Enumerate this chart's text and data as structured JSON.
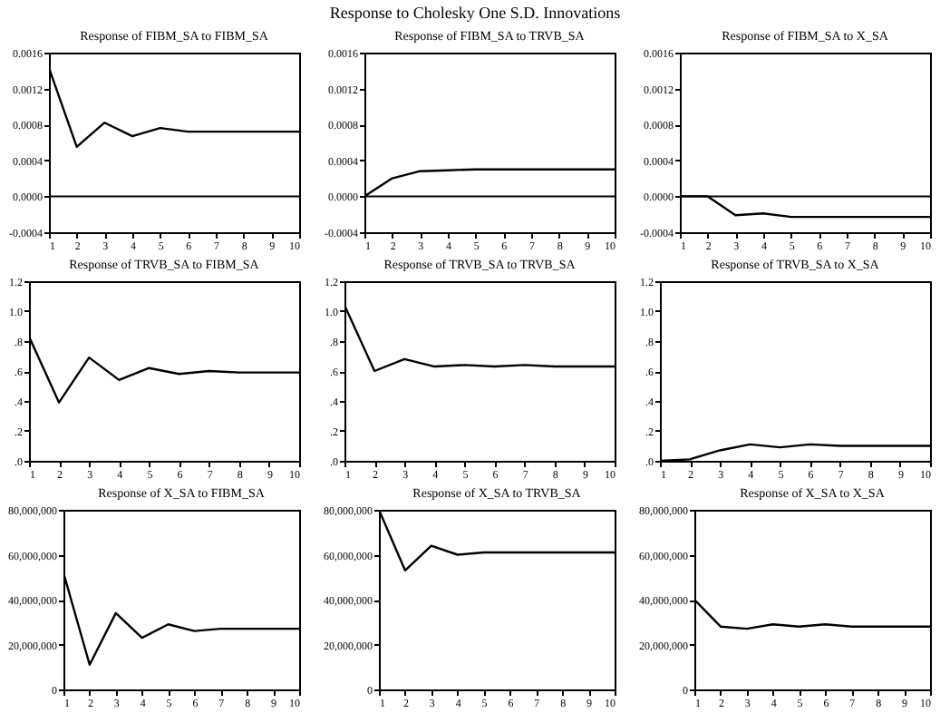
{
  "chart_data": [
    {
      "type": "line",
      "title": "Response of FIBM_SA to FIBM_SA",
      "annotations": [
        "Response to Cholesky One S.D. Innovations"
      ],
      "x": [
        1,
        2,
        3,
        4,
        5,
        6,
        7,
        8,
        9,
        10
      ],
      "xlim": [
        1,
        10
      ],
      "xticks": [
        1,
        2,
        3,
        4,
        5,
        6,
        7,
        8,
        9,
        10
      ],
      "ylim": [
        -0.0004,
        0.0016
      ],
      "yticks": [
        -0.0004,
        {
          "value": 0,
          "label": "0.0000"
        },
        0.0004,
        0.0008,
        0.0012,
        0.0016
      ],
      "ref_lines": [
        {
          "axis": "y",
          "value": 0
        }
      ],
      "series": [
        {
          "color": "#000000",
          "values": [
            0.00143,
            0.00055,
            0.00082,
            0.00067,
            0.00076,
            0.00072,
            0.00072,
            0.00072,
            0.00072,
            0.00072
          ]
        }
      ]
    },
    {
      "type": "line",
      "title": "Response of FIBM_SA to TRVB_SA",
      "x": [
        1,
        2,
        3,
        4,
        5,
        6,
        7,
        8,
        9,
        10
      ],
      "xlim": [
        1,
        10
      ],
      "xticks": [
        1,
        2,
        3,
        4,
        5,
        6,
        7,
        8,
        9,
        10
      ],
      "ylim": [
        -0.0004,
        0.0016
      ],
      "yticks": [
        -0.0004,
        {
          "value": 0,
          "label": "0.0000"
        },
        0.0004,
        0.0008,
        0.0012,
        0.0016
      ],
      "ref_lines": [
        {
          "axis": "y",
          "value": 0
        }
      ],
      "series": [
        {
          "color": "#000000",
          "values": [
            0,
            0.0002,
            0.00028,
            0.00029,
            0.0003,
            0.0003,
            0.0003,
            0.0003,
            0.0003,
            0.0003
          ]
        }
      ]
    },
    {
      "type": "line",
      "title": "Response of FIBM_SA to X_SA",
      "x": [
        1,
        2,
        3,
        4,
        5,
        6,
        7,
        8,
        9,
        10
      ],
      "xlim": [
        1,
        10
      ],
      "xticks": [
        1,
        2,
        3,
        4,
        5,
        6,
        7,
        8,
        9,
        10
      ],
      "ylim": [
        -0.0004,
        0.0016
      ],
      "yticks": [
        -0.0004,
        {
          "value": 0,
          "label": "0.0000"
        },
        0.0004,
        0.0008,
        0.0012,
        0.0016
      ],
      "ref_lines": [
        {
          "axis": "y",
          "value": 0
        }
      ],
      "series": [
        {
          "color": "#000000",
          "values": [
            0,
            0,
            -0.00021,
            -0.00019,
            -0.00023,
            -0.00023,
            -0.00023,
            -0.00023,
            -0.00023,
            -0.00023
          ]
        }
      ]
    },
    {
      "type": "line",
      "title": "Response of TRVB_SA to FIBM_SA",
      "x": [
        1,
        2,
        3,
        4,
        5,
        6,
        7,
        8,
        9,
        10
      ],
      "xlim": [
        1,
        10
      ],
      "xticks": [
        1,
        2,
        3,
        4,
        5,
        6,
        7,
        8,
        9,
        10
      ],
      "ylim": [
        0,
        1.2
      ],
      "yticks": [
        {
          "value": 0,
          "label": ".0"
        },
        {
          "value": 0.2,
          "label": ".2"
        },
        {
          "value": 0.4,
          "label": ".4"
        },
        {
          "value": 0.6,
          "label": ".6"
        },
        {
          "value": 0.8,
          "label": ".8"
        },
        {
          "value": 1,
          "label": "1.0"
        },
        1.2
      ],
      "series": [
        {
          "color": "#000000",
          "values": [
            0.83,
            0.39,
            0.69,
            0.54,
            0.62,
            0.58,
            0.6,
            0.59,
            0.59,
            0.59
          ]
        }
      ]
    },
    {
      "type": "line",
      "title": "Response of TRVB_SA to TRVB_SA",
      "x": [
        1,
        2,
        3,
        4,
        5,
        6,
        7,
        8,
        9,
        10
      ],
      "xlim": [
        1,
        10
      ],
      "xticks": [
        1,
        2,
        3,
        4,
        5,
        6,
        7,
        8,
        9,
        10
      ],
      "ylim": [
        0,
        1.2
      ],
      "yticks": [
        {
          "value": 0,
          "label": ".0"
        },
        {
          "value": 0.2,
          "label": ".2"
        },
        {
          "value": 0.4,
          "label": ".4"
        },
        {
          "value": 0.6,
          "label": ".6"
        },
        {
          "value": 0.8,
          "label": ".8"
        },
        {
          "value": 1,
          "label": "1.0"
        },
        1.2
      ],
      "series": [
        {
          "color": "#000000",
          "values": [
            1.04,
            0.6,
            0.68,
            0.63,
            0.64,
            0.63,
            0.64,
            0.63,
            0.63,
            0.63
          ]
        }
      ]
    },
    {
      "type": "line",
      "title": "Response of TRVB_SA to X_SA",
      "x": [
        1,
        2,
        3,
        4,
        5,
        6,
        7,
        8,
        9,
        10
      ],
      "xlim": [
        1,
        10
      ],
      "xticks": [
        1,
        2,
        3,
        4,
        5,
        6,
        7,
        8,
        9,
        10
      ],
      "ylim": [
        0,
        1.2
      ],
      "yticks": [
        {
          "value": 0,
          "label": ".0"
        },
        {
          "value": 0.2,
          "label": ".2"
        },
        {
          "value": 0.4,
          "label": ".4"
        },
        {
          "value": 0.6,
          "label": ".6"
        },
        {
          "value": 0.8,
          "label": ".8"
        },
        {
          "value": 1,
          "label": "1.0"
        },
        1.2
      ],
      "series": [
        {
          "color": "#000000",
          "values": [
            0,
            0.01,
            0.07,
            0.11,
            0.09,
            0.11,
            0.1,
            0.1,
            0.1,
            0.1
          ]
        }
      ]
    },
    {
      "type": "line",
      "title": "Response of X_SA to FIBM_SA",
      "x": [
        1,
        2,
        3,
        4,
        5,
        6,
        7,
        8,
        9,
        10
      ],
      "xlim": [
        1,
        10
      ],
      "xticks": [
        1,
        2,
        3,
        4,
        5,
        6,
        7,
        8,
        9,
        10
      ],
      "ylim": [
        0,
        80000000
      ],
      "yticks": [
        0,
        {
          "value": 20000000,
          "label": "20,000,000"
        },
        {
          "value": 40000000,
          "label": "40,000,000"
        },
        {
          "value": 60000000,
          "label": "60,000,000"
        },
        {
          "value": 80000000,
          "label": "80,000,000"
        }
      ],
      "series": [
        {
          "color": "#000000",
          "values": [
            52000000,
            11000000,
            34000000,
            23000000,
            29000000,
            26000000,
            27000000,
            27000000,
            27000000,
            27000000
          ]
        }
      ]
    },
    {
      "type": "line",
      "title": "Response of X_SA to TRVB_SA",
      "x": [
        1,
        2,
        3,
        4,
        5,
        6,
        7,
        8,
        9,
        10
      ],
      "xlim": [
        1,
        10
      ],
      "xticks": [
        1,
        2,
        3,
        4,
        5,
        6,
        7,
        8,
        9,
        10
      ],
      "ylim": [
        0,
        80000000
      ],
      "yticks": [
        0,
        {
          "value": 20000000,
          "label": "20,000,000"
        },
        {
          "value": 40000000,
          "label": "40,000,000"
        },
        {
          "value": 60000000,
          "label": "60,000,000"
        },
        {
          "value": 80000000,
          "label": "80,000,000"
        }
      ],
      "series": [
        {
          "color": "#000000",
          "values": [
            80000000,
            53000000,
            64000000,
            60000000,
            61000000,
            61000000,
            61000000,
            61000000,
            61000000,
            61000000
          ]
        }
      ]
    },
    {
      "type": "line",
      "title": "Response of X_SA to X_SA",
      "x": [
        1,
        2,
        3,
        4,
        5,
        6,
        7,
        8,
        9,
        10
      ],
      "xlim": [
        1,
        10
      ],
      "xticks": [
        1,
        2,
        3,
        4,
        5,
        6,
        7,
        8,
        9,
        10
      ],
      "ylim": [
        0,
        80000000
      ],
      "yticks": [
        0,
        {
          "value": 20000000,
          "label": "20,000,000"
        },
        {
          "value": 40000000,
          "label": "40,000,000"
        },
        {
          "value": 60000000,
          "label": "60,000,000"
        },
        {
          "value": 80000000,
          "label": "80,000,000"
        }
      ],
      "series": [
        {
          "color": "#000000",
          "values": [
            40000000,
            28000000,
            27000000,
            29000000,
            28000000,
            29000000,
            28000000,
            28000000,
            28000000,
            28000000
          ]
        }
      ]
    }
  ]
}
